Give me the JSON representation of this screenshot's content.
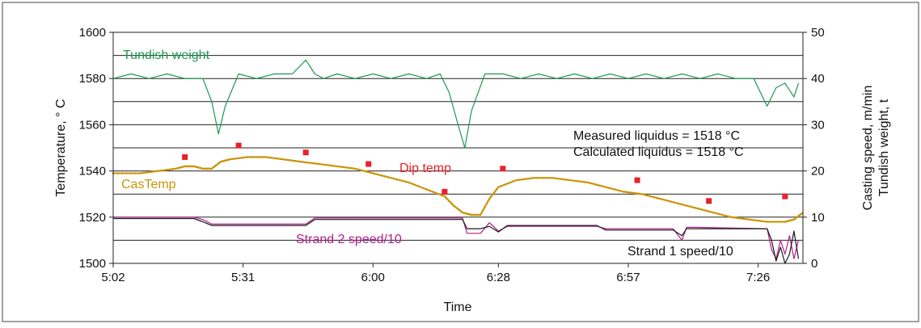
{
  "chart_data": {
    "type": "line",
    "xlabel": "Time",
    "ylabel_left": "Temperature, ° C",
    "ylabel_right_1": "Casting speed, m/min",
    "ylabel_right_2": "Tundish weight, t",
    "x_ticks": [
      "5:02",
      "5:31",
      "6:00",
      "6:28",
      "6:57",
      "7:26"
    ],
    "x_tick_minutes": [
      302,
      331,
      360,
      388,
      417,
      446
    ],
    "x_range_minutes": [
      302,
      456
    ],
    "y_left_ticks": [
      "1600",
      "1580",
      "1560",
      "1540",
      "1520",
      "1500"
    ],
    "y_left_range": [
      1500,
      1600
    ],
    "y_right_ticks": [
      "50",
      "40",
      "30",
      "20",
      "10",
      "0"
    ],
    "y_right_range": [
      0,
      50
    ],
    "grid": "horizontal",
    "annotations": {
      "tundish_label": "Tundish weight",
      "castemp_label": "CasTemp",
      "diptemp_label": "Dip temp",
      "strand2_label": "Strand 2 speed/10",
      "strand1_label": "Strand 1 speed/10",
      "measured_liquidus": "Measured liquidus  = 1518 °C",
      "calculated_liquidus": "Calculated liquidus  = 1518 °C"
    },
    "colors": {
      "tundish": "#1a9a50",
      "castemp": "#c8960a",
      "dip": "#e8202a",
      "strand2": "#b0208c",
      "strand1": "#1a1a1a",
      "grid": "#222222"
    },
    "series": [
      {
        "name": "Tundish weight",
        "axis": "right",
        "x": [
          302,
          306,
          310,
          314,
          318,
          322,
          324,
          325.5,
          327,
          330,
          334,
          338,
          342,
          345,
          347,
          349,
          352,
          356,
          360,
          364,
          368,
          372,
          375,
          377,
          379,
          380.5,
          382,
          385,
          389,
          393,
          397,
          401,
          405,
          409,
          413,
          417,
          421,
          425,
          429,
          433,
          437,
          441,
          445,
          446.5,
          448,
          450,
          452,
          454,
          455
        ],
        "y": [
          40,
          41,
          40,
          41,
          40,
          40,
          35,
          28,
          34,
          41,
          40,
          41,
          41,
          44,
          41,
          40,
          41,
          40,
          41,
          40,
          41,
          40,
          41,
          37,
          30,
          25,
          33,
          41,
          41,
          40,
          41,
          40,
          41,
          40,
          41,
          40,
          41,
          40,
          41,
          40,
          41,
          40,
          40,
          37,
          34,
          38,
          39,
          36,
          39
        ]
      },
      {
        "name": "CasTemp",
        "axis": "left",
        "x": [
          302,
          308,
          312,
          316,
          318,
          320,
          322,
          324,
          326,
          328,
          332,
          336,
          340,
          344,
          348,
          352,
          356,
          360,
          364,
          368,
          372,
          376,
          378,
          380,
          382,
          384,
          386,
          388,
          392,
          396,
          400,
          404,
          408,
          412,
          416,
          420,
          424,
          428,
          432,
          436,
          440,
          444,
          448,
          452,
          454,
          456
        ],
        "y": [
          1539,
          1539,
          1540,
          1541,
          1542,
          1542,
          1541,
          1541,
          1544,
          1545,
          1546,
          1546,
          1545,
          1544,
          1543,
          1542,
          1541,
          1539,
          1537,
          1535,
          1532,
          1529,
          1525,
          1522,
          1521,
          1521,
          1528,
          1533,
          1536,
          1537,
          1537,
          1536,
          1535,
          1533,
          1531,
          1530,
          1528,
          1526,
          1524,
          1522,
          1520,
          1519,
          1518,
          1518,
          1519,
          1522
        ]
      },
      {
        "name": "Dip temp",
        "axis": "left",
        "type": "scatter",
        "x": [
          318,
          330,
          345,
          359,
          376,
          389,
          419,
          435,
          452
        ],
        "y": [
          1546,
          1551,
          1548,
          1543,
          1531,
          1541,
          1536,
          1527,
          1529
        ]
      },
      {
        "name": "Strand 2 speed/10",
        "axis": "right",
        "x": [
          302,
          320,
          322,
          324,
          345,
          347,
          380,
          381,
          384,
          386,
          388,
          390,
          410,
          412,
          427,
          429,
          430,
          432,
          448,
          449,
          450,
          451,
          452,
          453,
          454,
          455
        ],
        "y": [
          10,
          10,
          9.5,
          8.5,
          8.5,
          9.8,
          9.8,
          6.5,
          6.5,
          8.8,
          7.0,
          8.0,
          8.0,
          7.5,
          7.5,
          5.0,
          7.8,
          7.8,
          7.5,
          3.0,
          1.0,
          5.0,
          2.0,
          6.0,
          1.0,
          5.0
        ]
      },
      {
        "name": "Strand 1 speed/10",
        "axis": "right",
        "x": [
          302,
          320,
          322,
          324,
          345,
          347,
          380,
          381,
          384,
          386,
          388,
          390,
          410,
          412,
          427,
          429,
          430,
          432,
          448,
          449,
          450,
          451,
          452,
          453,
          454,
          455
        ],
        "y": [
          9.7,
          9.7,
          9.0,
          8.2,
          8.2,
          9.5,
          9.5,
          7.5,
          7.5,
          8.0,
          6.8,
          8.2,
          8.2,
          7.2,
          7.2,
          6.0,
          7.5,
          7.5,
          7.5,
          5.0,
          0.5,
          3.5,
          0.0,
          2.0,
          7.0,
          1.0
        ]
      }
    ]
  }
}
